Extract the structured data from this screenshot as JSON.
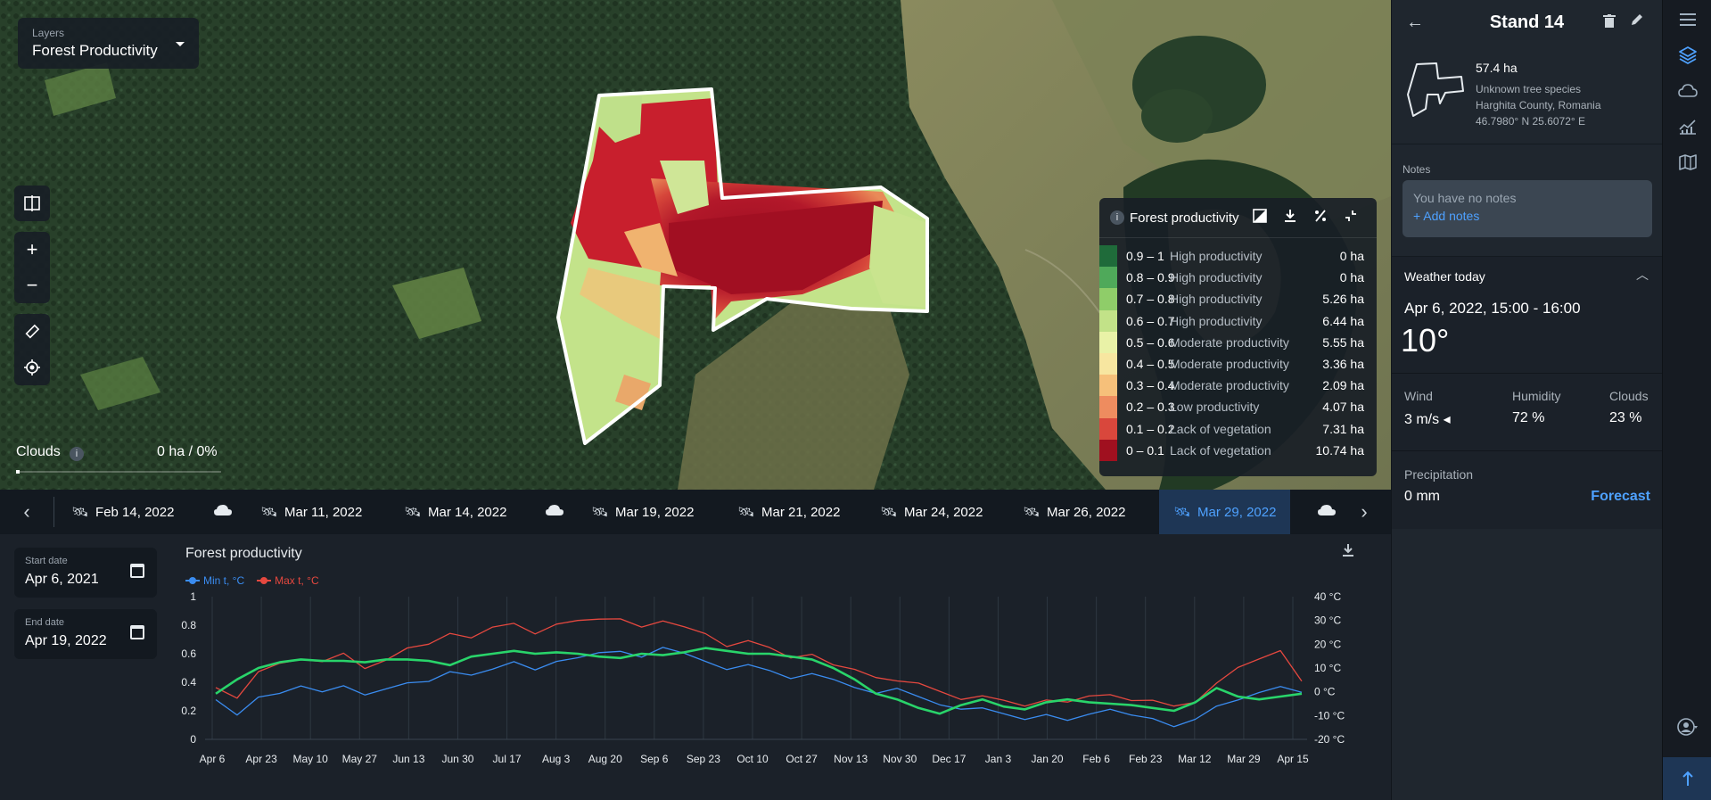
{
  "layers": {
    "caption": "Layers",
    "value": "Forest Productivity"
  },
  "map_tools": {
    "compare_icon": "▯|▯",
    "zoom_in_label": "+",
    "zoom_out_label": "−",
    "ruler_icon": "📏",
    "locate_icon": "◎"
  },
  "clouds": {
    "label": "Clouds",
    "info": "i",
    "value": "0 ha / 0%"
  },
  "legend": {
    "title": "Forest productivity",
    "info": "i",
    "rows": [
      {
        "range": "0.9 – 1",
        "desc": "High productivity",
        "ha": "0 ha",
        "color": "#1f6b3a"
      },
      {
        "range": "0.8 – 0.9",
        "desc": "High productivity",
        "ha": "0 ha",
        "color": "#4fa95a"
      },
      {
        "range": "0.7 – 0.8",
        "desc": "High productivity",
        "ha": "5.26 ha",
        "color": "#8fcd69"
      },
      {
        "range": "0.6 – 0.7",
        "desc": "High productivity",
        "ha": "6.44 ha",
        "color": "#c2e288"
      },
      {
        "range": "0.5 – 0.6",
        "desc": "Moderate productivity",
        "ha": "5.55 ha",
        "color": "#e9f2a7"
      },
      {
        "range": "0.4 – 0.5",
        "desc": "Moderate productivity",
        "ha": "3.36 ha",
        "color": "#f7e6a0"
      },
      {
        "range": "0.3 – 0.4",
        "desc": "Moderate productivity",
        "ha": "2.09 ha",
        "color": "#f6c07a"
      },
      {
        "range": "0.2 – 0.3",
        "desc": "Low productivity",
        "ha": "4.07 ha",
        "color": "#ee8c5f"
      },
      {
        "range": "0.1 – 0.2",
        "desc": "Lack of vegetation",
        "ha": "7.31 ha",
        "color": "#d9473c"
      },
      {
        "range": "0 – 0.1",
        "desc": "Lack of vegetation",
        "ha": "10.74 ha",
        "color": "#a0101f"
      }
    ]
  },
  "timeline": {
    "items": [
      {
        "kind": "sat",
        "label": "Feb 14, 2022"
      },
      {
        "kind": "cloud"
      },
      {
        "kind": "sat",
        "label": "Mar 11, 2022"
      },
      {
        "kind": "sat",
        "label": "Mar 14, 2022"
      },
      {
        "kind": "cloud"
      },
      {
        "kind": "sat",
        "label": "Mar 19, 2022"
      },
      {
        "kind": "sat",
        "label": "Mar 21, 2022"
      },
      {
        "kind": "sat",
        "label": "Mar 24, 2022"
      },
      {
        "kind": "sat",
        "label": "Mar 26, 2022"
      },
      {
        "kind": "sat",
        "label": "Mar 29, 2022",
        "active": true
      },
      {
        "kind": "cloud"
      }
    ]
  },
  "dates": {
    "start_caption": "Start date",
    "start_value": "Apr 6, 2021",
    "end_caption": "End date",
    "end_value": "Apr 19, 2022"
  },
  "chart_data": {
    "type": "line",
    "title": "Forest productivity",
    "series": [
      {
        "name": "Min t, °C",
        "color": "#3a8cf0",
        "axis": "right",
        "values": [
          -4,
          -10,
          -2,
          0,
          2,
          0,
          3,
          -2,
          1,
          4,
          5,
          8,
          7,
          10,
          12,
          9,
          13,
          15,
          16,
          17,
          15,
          18,
          16,
          13,
          10,
          11,
          9,
          6,
          7,
          5,
          2,
          0,
          1,
          -2,
          -5,
          -8,
          -7,
          -9,
          -11,
          -10,
          -12,
          -9,
          -8,
          -10,
          -11,
          -14,
          -12,
          -6,
          -3,
          -1,
          2,
          0
        ]
      },
      {
        "name": "Max t, °C",
        "color": "#e5483f",
        "axis": "right",
        "values": [
          2,
          -2,
          8,
          12,
          14,
          12,
          16,
          10,
          14,
          18,
          20,
          25,
          22,
          27,
          29,
          25,
          28,
          30,
          31,
          30,
          27,
          30,
          28,
          24,
          19,
          22,
          18,
          14,
          16,
          12,
          9,
          6,
          5,
          3,
          0,
          -3,
          -1,
          -4,
          -6,
          -3,
          -5,
          -2,
          -1,
          -3,
          -4,
          -6,
          -4,
          3,
          10,
          14,
          18,
          4
        ]
      },
      {
        "name": "",
        "color": "#29d46a",
        "axis": "left",
        "values": [
          0.32,
          0.42,
          0.5,
          0.54,
          0.56,
          0.55,
          0.55,
          0.54,
          0.56,
          0.56,
          0.55,
          0.52,
          0.58,
          0.6,
          0.62,
          0.6,
          0.61,
          0.6,
          0.58,
          0.57,
          0.6,
          0.59,
          0.61,
          0.64,
          0.62,
          0.6,
          0.6,
          0.58,
          0.56,
          0.5,
          0.42,
          0.32,
          0.28,
          0.22,
          0.18,
          0.24,
          0.28,
          0.23,
          0.21,
          0.26,
          0.28,
          0.26,
          0.25,
          0.24,
          0.22,
          0.2,
          0.26,
          0.36,
          0.3,
          0.28,
          0.3,
          0.32
        ]
      }
    ],
    "x_ticks": [
      "Apr 6",
      "Apr 23",
      "May 10",
      "May 27",
      "Jun 13",
      "Jun 30",
      "Jul 17",
      "Aug 3",
      "Aug 20",
      "Sep 6",
      "Sep 23",
      "Oct 10",
      "Oct 27",
      "Nov 13",
      "Nov 30",
      "Dec 17",
      "Jan 3",
      "Jan 20",
      "Feb 6",
      "Feb 23",
      "Mar 12",
      "Mar 29",
      "Apr 15"
    ],
    "y_left_ticks": [
      "0",
      "0.2",
      "0.4",
      "0.6",
      "0.8",
      "1"
    ],
    "y_right_ticks": [
      "-20 °C",
      "-10 °C",
      "0 °C",
      "10 °C",
      "20 °C",
      "30 °C",
      "40 °C"
    ],
    "ylim_left": [
      0,
      1
    ],
    "ylim_right": [
      -20,
      40
    ],
    "grid": "vertical",
    "legend": "top-left"
  },
  "stand": {
    "title": "Stand 14",
    "area": "57.4 ha",
    "species": "Unknown tree species",
    "location": "Harghita County, Romania",
    "coords": "46.7980° N 25.6072° E"
  },
  "notes": {
    "caption": "Notes",
    "placeholder": "You have no notes",
    "add": "+ Add notes"
  },
  "weather": {
    "title": "Weather today",
    "when": "Apr 6, 2022, 15:00 - 16:00",
    "temp": "10°",
    "wind_label": "Wind",
    "wind_value": "3 m/s ◂",
    "humidity_label": "Humidity",
    "humidity_value": "72 %",
    "clouds_label": "Clouds",
    "clouds_value": "23 %",
    "precip_label": "Precipitation",
    "precip_value": "0 mm",
    "forecast": "Forecast"
  }
}
